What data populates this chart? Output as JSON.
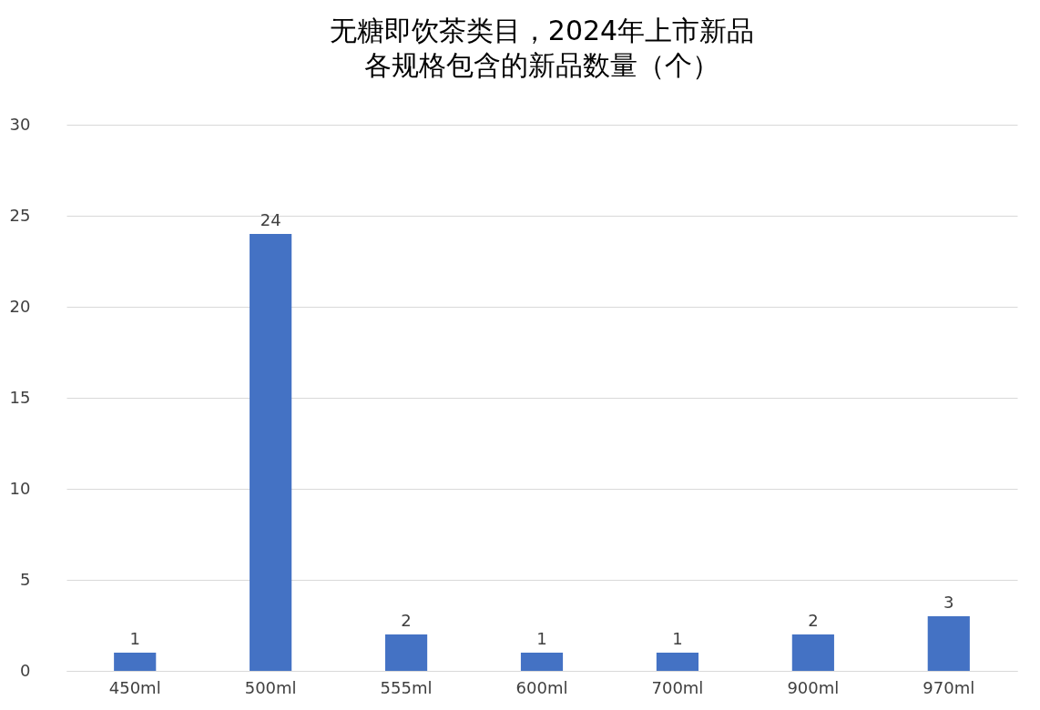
{
  "chart_data": {
    "type": "bar",
    "title": "无糖即饮茶类目，2024年上市新品",
    "subtitle": "各规格包含的新品数量（个）",
    "categories": [
      "450ml",
      "500ml",
      "555ml",
      "600ml",
      "700ml",
      "900ml",
      "970ml"
    ],
    "values": [
      1,
      24,
      2,
      1,
      1,
      2,
      3
    ],
    "color": "#4472c4",
    "ylim": [
      0,
      30
    ],
    "yticks": [
      0,
      5,
      10,
      15,
      20,
      25,
      30
    ],
    "grid": "y",
    "data_labels": true
  }
}
